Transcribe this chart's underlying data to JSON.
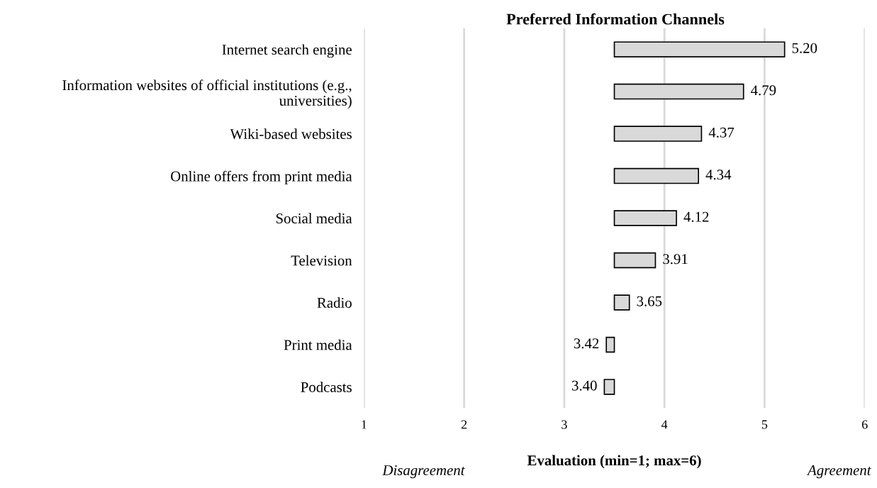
{
  "chart_data": {
    "type": "bar",
    "orientation": "horizontal",
    "title": "Preferred Information Channels",
    "xlabel": "Evaluation (min=1; max=6)",
    "categories": [
      "Internet search engine",
      "Information websites of official institutions (e.g., universities)",
      "Wiki-based websites",
      "Online offers from print media",
      "Social media",
      "Television",
      "Radio",
      "Print media",
      "Podcasts"
    ],
    "base": [
      3.5,
      3.5,
      3.5,
      3.5,
      3.5,
      3.5,
      3.5,
      3.5,
      3.5
    ],
    "values": [
      1.7,
      1.29,
      0.87,
      0.84,
      0.62,
      0.41,
      0.15,
      -0.08,
      -0.1
    ],
    "value_labels": [
      "5.20",
      "4.79",
      "4.37",
      "4.34",
      "4.12",
      "3.91",
      "3.65",
      "3.42",
      "3.40"
    ],
    "color": "#d9d9d9",
    "xlim": [
      1,
      6
    ],
    "xticks": [
      1,
      2,
      3,
      4,
      5,
      6
    ],
    "grid": "x",
    "annotations": [
      "Disagreement",
      "Agreement"
    ]
  }
}
